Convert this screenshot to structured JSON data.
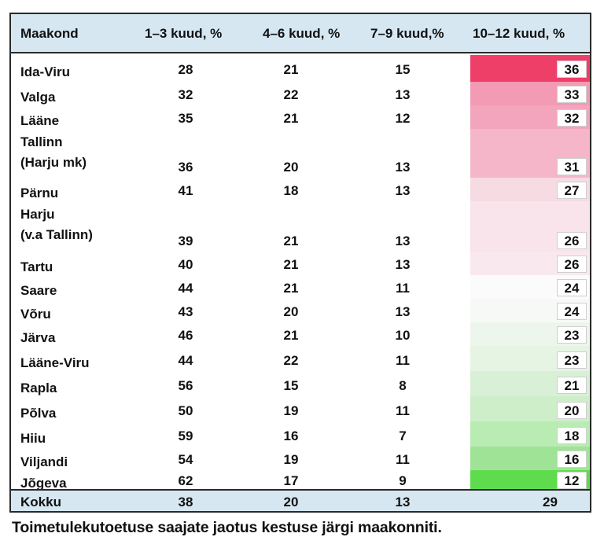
{
  "header": {
    "county": "Maakond",
    "m1_3": "1–3 kuud, %",
    "m4_6": "4–6 kuud, %",
    "m7_9": "7–9 kuud,%",
    "m10_12": "10–12 kuud, %"
  },
  "rows": [
    {
      "name": [
        "Ida-Viru"
      ],
      "v1": "28",
      "v2": "21",
      "v3": "15",
      "v4": "36",
      "heat": "#ee3f69"
    },
    {
      "name": [
        "Valga"
      ],
      "v1": "32",
      "v2": "22",
      "v3": "13",
      "v4": "33",
      "heat": "#f39ab5"
    },
    {
      "name": [
        "Lääne"
      ],
      "v1": "35",
      "v2": "21",
      "v3": "12",
      "v4": "32",
      "heat": "#f3a5bd"
    },
    {
      "name": [
        "Tallinn",
        "(Harju mk)"
      ],
      "v1": "36",
      "v2": "20",
      "v3": "13",
      "v4": "31",
      "heat": "#f4b6c8"
    },
    {
      "name": [
        "Pärnu"
      ],
      "v1": "41",
      "v2": "18",
      "v3": "13",
      "v4": "27",
      "heat": "#f6dbe3"
    },
    {
      "name": [
        "Harju",
        "(v.a Tallinn)"
      ],
      "v1": "39",
      "v2": "21",
      "v3": "13",
      "v4": "26",
      "heat": "#f8e4ea"
    },
    {
      "name": [
        "Tartu"
      ],
      "v1": "40",
      "v2": "21",
      "v3": "13",
      "v4": "26",
      "heat": "#f9e9ee"
    },
    {
      "name": [
        "Saare"
      ],
      "v1": "44",
      "v2": "21",
      "v3": "11",
      "v4": "24",
      "heat": "#fbfbfb"
    },
    {
      "name": [
        "Võru"
      ],
      "v1": "43",
      "v2": "20",
      "v3": "13",
      "v4": "24",
      "heat": "#f7f9f7"
    },
    {
      "name": [
        "Järva"
      ],
      "v1": "46",
      "v2": "21",
      "v3": "10",
      "v4": "23",
      "heat": "#edf6ec"
    },
    {
      "name": [
        "Lääne-Viru"
      ],
      "v1": "44",
      "v2": "22",
      "v3": "11",
      "v4": "23",
      "heat": "#e6f4e4"
    },
    {
      "name": [
        "Rapla"
      ],
      "v1": "56",
      "v2": "15",
      "v3": "8",
      "v4": "21",
      "heat": "#d8f0d6"
    },
    {
      "name": [
        "Põlva"
      ],
      "v1": "50",
      "v2": "19",
      "v3": "11",
      "v4": "20",
      "heat": "#cdeec9"
    },
    {
      "name": [
        "Hiiu"
      ],
      "v1": "59",
      "v2": "16",
      "v3": "7",
      "v4": "18",
      "heat": "#b9ecb3"
    },
    {
      "name": [
        "Viljandi"
      ],
      "v1": "54",
      "v2": "19",
      "v3": "11",
      "v4": "16",
      "heat": "#9fe496"
    },
    {
      "name": [
        "Jõgeva"
      ],
      "v1": "62",
      "v2": "17",
      "v3": "9",
      "v4": "12",
      "heat": "#5fdc4e"
    }
  ],
  "total": {
    "name": "Kokku",
    "v1": "38",
    "v2": "20",
    "v3": "13",
    "v4": "29"
  },
  "caption": "Toimetulekutoetuse saajate jaotus kestuse järgi maakonniti."
}
